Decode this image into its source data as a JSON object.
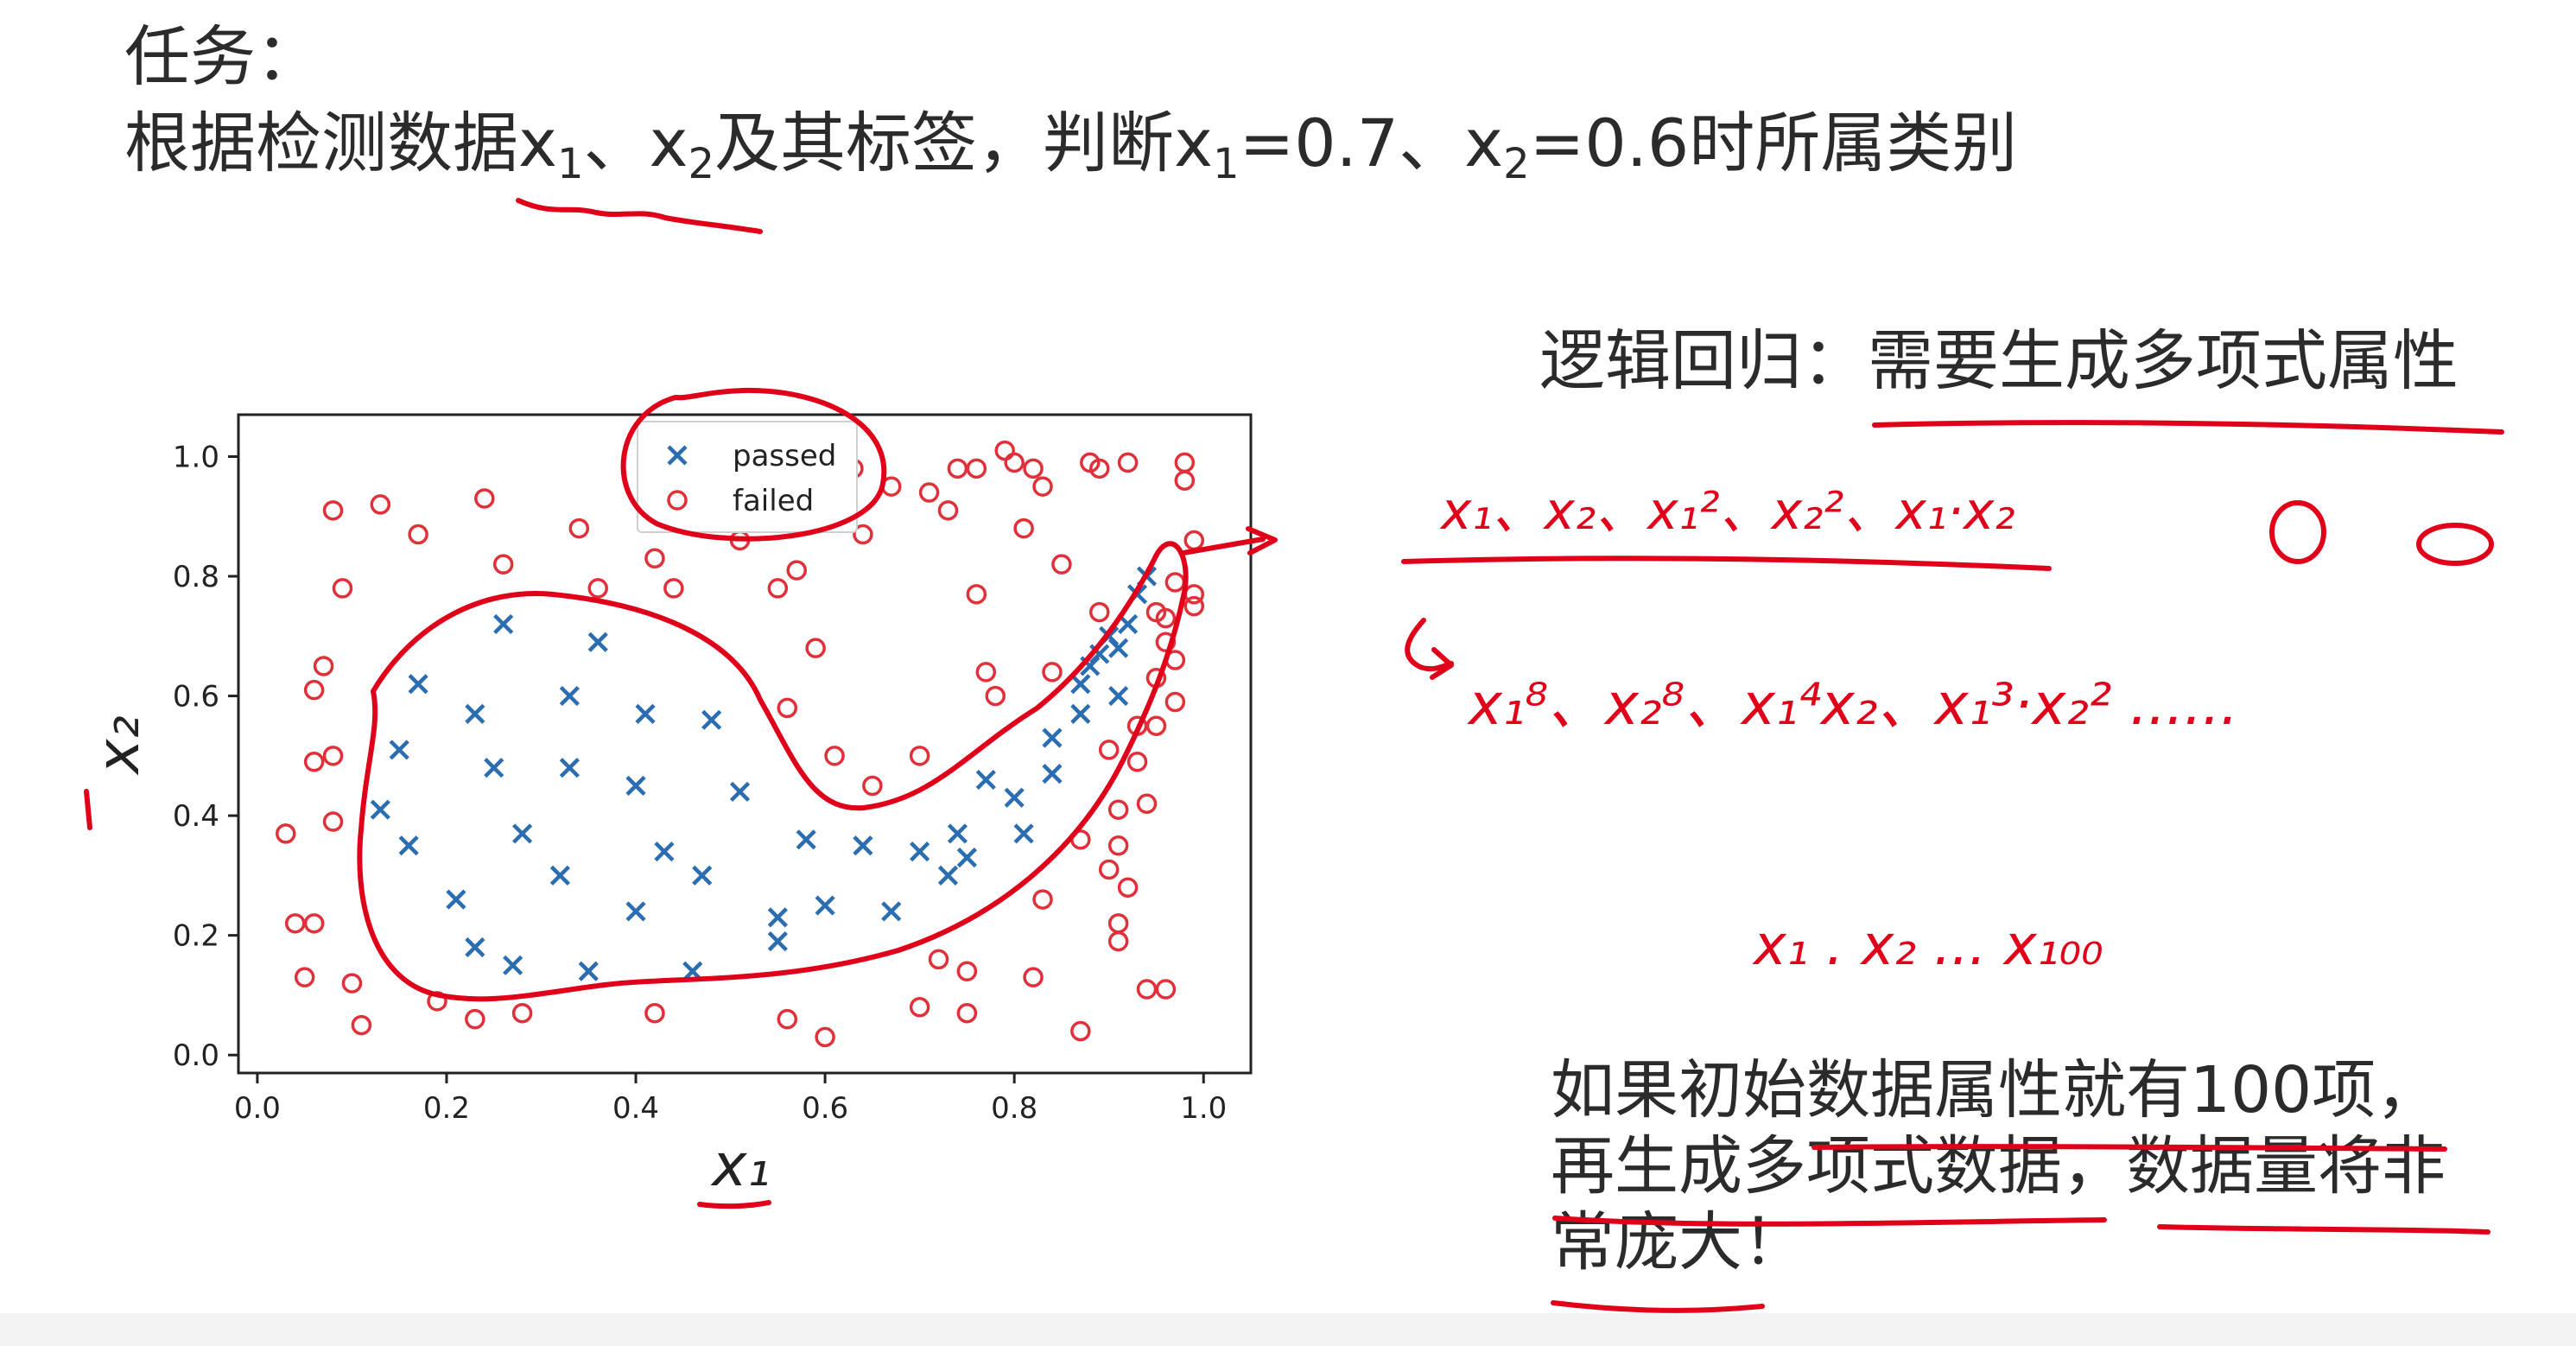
{
  "slide": {
    "task_label": "任务：",
    "task_text_parts": {
      "p1": "根据检测数据x",
      "s1": "1",
      "p2": "、x",
      "s2": "2",
      "p3": "及其标签，判断x",
      "s3": "1",
      "p4": "=0.7、x",
      "s4": "2",
      "p5": "=0.6时所属类别"
    },
    "logistic_heading": "逻辑回归：需要生成多项式属性",
    "conclusion": "如果初始数据属性就有100项，\n再生成多项式数据，数据量将非\n常庞大！"
  },
  "handwriting": {
    "line1": "x₁、x₂、x₁²、x₂²、x₁·x₂",
    "line2": "x₁⁸、x₂⁸、x₁⁴x₂、x₁³·x₂² ......",
    "line3": "x₁ . x₂ ... x₁₀₀",
    "side_mark": "0 0",
    "left_mark": "|"
  },
  "colors": {
    "passed": "#2a6db0",
    "failed": "#e0303a",
    "ink": "#e1001a"
  },
  "chart_data": {
    "type": "scatter",
    "title": "",
    "xlabel": "x₁",
    "ylabel": "x₂",
    "xlim": [
      -0.02,
      1.05
    ],
    "ylim": [
      -0.03,
      1.07
    ],
    "xticks": [
      0.0,
      0.2,
      0.4,
      0.6,
      0.8,
      1.0
    ],
    "yticks": [
      0.0,
      0.2,
      0.4,
      0.6,
      0.8,
      1.0
    ],
    "xtick_labels": [
      "0.0",
      "0.2",
      "0.4",
      "0.6",
      "0.8",
      "1.0"
    ],
    "ytick_labels": [
      "0.0",
      "0.2",
      "0.4",
      "0.6",
      "0.8",
      "1.0"
    ],
    "legend_position": "top-center",
    "series": [
      {
        "name": "passed",
        "marker": "x",
        "points": [
          [
            0.26,
            0.72
          ],
          [
            0.36,
            0.69
          ],
          [
            0.17,
            0.62
          ],
          [
            0.23,
            0.57
          ],
          [
            0.33,
            0.6
          ],
          [
            0.41,
            0.57
          ],
          [
            0.48,
            0.56
          ],
          [
            0.15,
            0.51
          ],
          [
            0.25,
            0.48
          ],
          [
            0.33,
            0.48
          ],
          [
            0.4,
            0.45
          ],
          [
            0.51,
            0.44
          ],
          [
            0.13,
            0.41
          ],
          [
            0.16,
            0.35
          ],
          [
            0.28,
            0.37
          ],
          [
            0.43,
            0.34
          ],
          [
            0.32,
            0.3
          ],
          [
            0.47,
            0.3
          ],
          [
            0.21,
            0.26
          ],
          [
            0.4,
            0.24
          ],
          [
            0.23,
            0.18
          ],
          [
            0.27,
            0.15
          ],
          [
            0.35,
            0.14
          ],
          [
            0.46,
            0.14
          ],
          [
            0.55,
            0.23
          ],
          [
            0.55,
            0.19
          ],
          [
            0.58,
            0.36
          ],
          [
            0.6,
            0.25
          ],
          [
            0.64,
            0.35
          ],
          [
            0.67,
            0.24
          ],
          [
            0.7,
            0.34
          ],
          [
            0.73,
            0.3
          ],
          [
            0.74,
            0.37
          ],
          [
            0.75,
            0.33
          ],
          [
            0.77,
            0.46
          ],
          [
            0.8,
            0.43
          ],
          [
            0.81,
            0.37
          ],
          [
            0.84,
            0.53
          ],
          [
            0.84,
            0.47
          ],
          [
            0.87,
            0.57
          ],
          [
            0.87,
            0.62
          ],
          [
            0.88,
            0.65
          ],
          [
            0.89,
            0.67
          ],
          [
            0.9,
            0.7
          ],
          [
            0.91,
            0.6
          ],
          [
            0.91,
            0.68
          ],
          [
            0.92,
            0.72
          ],
          [
            0.93,
            0.77
          ],
          [
            0.94,
            0.8
          ]
        ]
      },
      {
        "name": "failed",
        "marker": "o",
        "points": [
          [
            0.03,
            0.37
          ],
          [
            0.04,
            0.22
          ],
          [
            0.05,
            0.13
          ],
          [
            0.06,
            0.22
          ],
          [
            0.06,
            0.49
          ],
          [
            0.06,
            0.61
          ],
          [
            0.07,
            0.65
          ],
          [
            0.08,
            0.91
          ],
          [
            0.08,
            0.39
          ],
          [
            0.08,
            0.5
          ],
          [
            0.09,
            0.78
          ],
          [
            0.1,
            0.12
          ],
          [
            0.11,
            0.05
          ],
          [
            0.13,
            0.92
          ],
          [
            0.17,
            0.87
          ],
          [
            0.19,
            0.09
          ],
          [
            0.23,
            0.06
          ],
          [
            0.24,
            0.93
          ],
          [
            0.26,
            0.82
          ],
          [
            0.28,
            0.07
          ],
          [
            0.34,
            0.88
          ],
          [
            0.36,
            0.78
          ],
          [
            0.42,
            0.07
          ],
          [
            0.42,
            0.83
          ],
          [
            0.44,
            0.78
          ],
          [
            0.51,
            0.86
          ],
          [
            0.55,
            0.78
          ],
          [
            0.56,
            0.58
          ],
          [
            0.57,
            0.81
          ],
          [
            0.56,
            0.06
          ],
          [
            0.6,
            0.03
          ],
          [
            0.59,
            0.68
          ],
          [
            0.61,
            0.5
          ],
          [
            0.63,
            0.98
          ],
          [
            0.64,
            0.87
          ],
          [
            0.65,
            0.45
          ],
          [
            0.67,
            0.95
          ],
          [
            0.7,
            0.5
          ],
          [
            0.7,
            0.08
          ],
          [
            0.71,
            0.94
          ],
          [
            0.72,
            0.16
          ],
          [
            0.73,
            0.91
          ],
          [
            0.74,
            0.98
          ],
          [
            0.75,
            0.07
          ],
          [
            0.75,
            0.14
          ],
          [
            0.76,
            0.77
          ],
          [
            0.76,
            0.98
          ],
          [
            0.77,
            0.64
          ],
          [
            0.78,
            0.6
          ],
          [
            0.79,
            1.01
          ],
          [
            0.8,
            0.99
          ],
          [
            0.81,
            0.88
          ],
          [
            0.82,
            0.13
          ],
          [
            0.82,
            0.98
          ],
          [
            0.83,
            0.26
          ],
          [
            0.83,
            0.95
          ],
          [
            0.84,
            0.64
          ],
          [
            0.85,
            0.82
          ],
          [
            0.87,
            0.04
          ],
          [
            0.87,
            0.36
          ],
          [
            0.88,
            0.99
          ],
          [
            0.89,
            0.98
          ],
          [
            0.89,
            0.74
          ],
          [
            0.9,
            0.51
          ],
          [
            0.9,
            0.31
          ],
          [
            0.91,
            0.19
          ],
          [
            0.91,
            0.22
          ],
          [
            0.91,
            0.35
          ],
          [
            0.91,
            0.41
          ],
          [
            0.92,
            0.28
          ],
          [
            0.92,
            0.99
          ],
          [
            0.93,
            0.55
          ],
          [
            0.93,
            0.49
          ],
          [
            0.94,
            0.42
          ],
          [
            0.94,
            0.11
          ],
          [
            0.95,
            0.74
          ],
          [
            0.95,
            0.63
          ],
          [
            0.95,
            0.55
          ],
          [
            0.96,
            0.11
          ],
          [
            0.96,
            0.73
          ],
          [
            0.96,
            0.69
          ],
          [
            0.97,
            0.79
          ],
          [
            0.97,
            0.59
          ],
          [
            0.97,
            0.66
          ],
          [
            0.98,
            0.99
          ],
          [
            0.98,
            0.96
          ],
          [
            0.99,
            0.86
          ],
          [
            0.99,
            0.77
          ],
          [
            0.99,
            0.75
          ]
        ]
      }
    ]
  }
}
